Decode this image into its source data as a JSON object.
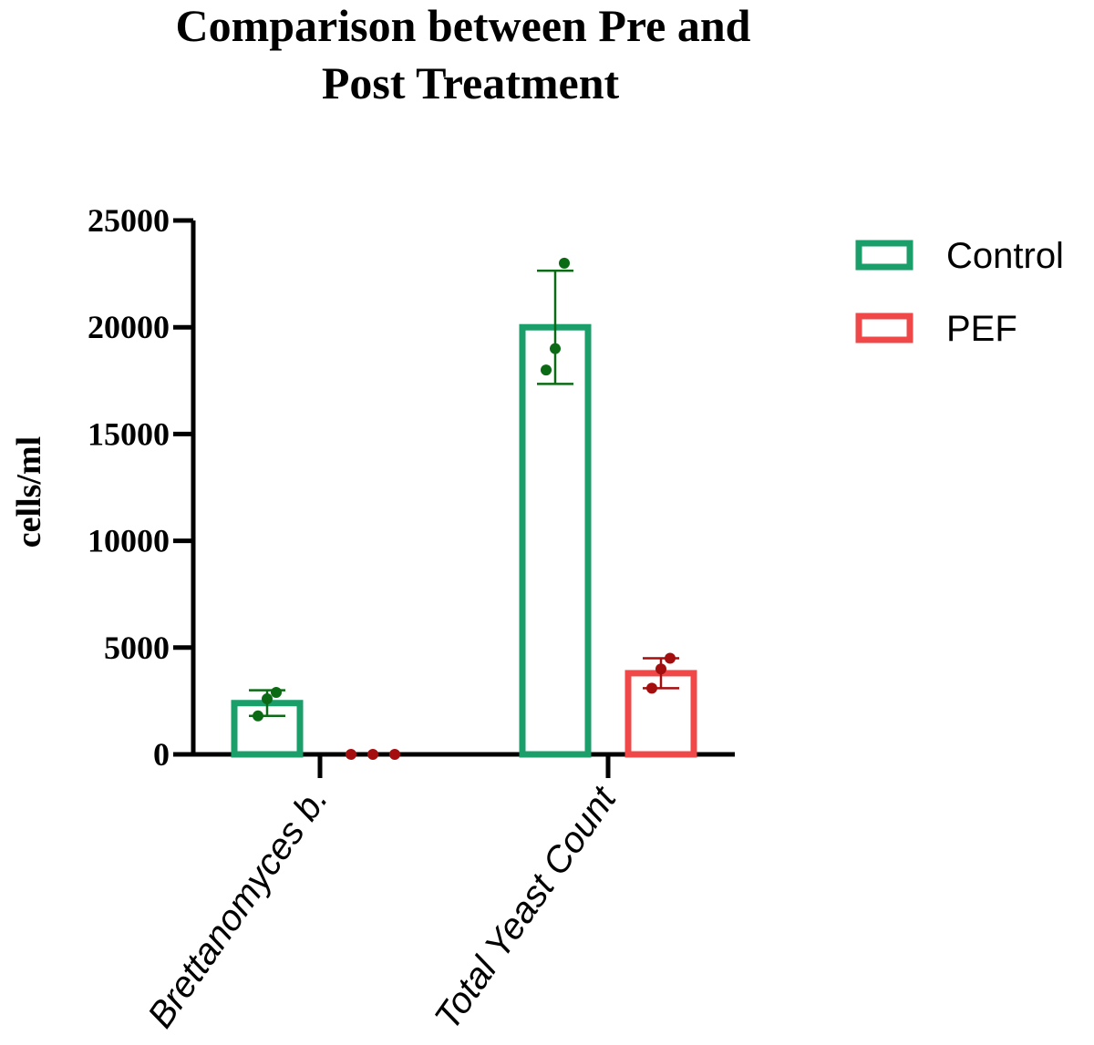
{
  "chart_data": {
    "type": "bar",
    "title_lines": [
      "Comparison between Pre and",
      "Post Treatment"
    ],
    "ylabel": "cells/ml",
    "xlabel": "",
    "ylim": [
      0,
      25000
    ],
    "yticks": [
      0,
      5000,
      10000,
      15000,
      20000,
      25000
    ],
    "categories": [
      "Brettanomyces b.",
      "Total Yeast Count"
    ],
    "series": [
      {
        "name": "Control",
        "color": "#1a9e6a",
        "point_color": "#0b6b14",
        "values": [
          2400,
          20000
        ],
        "errors": [
          600,
          2650
        ],
        "points": [
          [
            2900,
            2600,
            1800
          ],
          [
            23000,
            19000,
            18000
          ]
        ]
      },
      {
        "name": "PEF",
        "color": "#f04848",
        "point_color": "#a50e0e",
        "values": [
          0,
          3800
        ],
        "errors": [
          0,
          700
        ],
        "points": [
          [
            0,
            0,
            0
          ],
          [
            4500,
            4000,
            3100
          ]
        ]
      }
    ],
    "legend_position": "right",
    "grid": false
  }
}
